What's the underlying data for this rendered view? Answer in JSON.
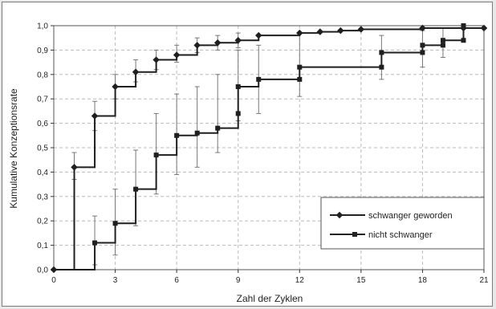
{
  "chart_data": {
    "type": "line",
    "step": true,
    "xlabel": "Zahl der Zyklen",
    "ylabel": "Kumulative Konzeptionsrate",
    "xlim": [
      0,
      21
    ],
    "ylim": [
      0,
      1.0
    ],
    "xticks": [
      0,
      3,
      6,
      9,
      12,
      15,
      18,
      21
    ],
    "yticks": [
      0,
      0.1,
      0.2,
      0.3,
      0.4,
      0.5,
      0.6,
      0.7,
      0.8,
      0.9,
      1.0
    ],
    "tick_labels_x": [
      "0",
      "3",
      "6",
      "9",
      "12",
      "15",
      "18",
      "21"
    ],
    "tick_labels_y": [
      "0,0",
      "0,1",
      "0,2",
      "0,3",
      "0,4",
      "0,5",
      "0,6",
      "0,7",
      "0,8",
      "0,9",
      "1,0"
    ],
    "grid": true,
    "legend_position": "bottom-right",
    "series": [
      {
        "name": "schwanger geworden",
        "marker": "diamond",
        "points": [
          [
            0,
            0
          ],
          [
            1,
            0.42
          ],
          [
            2,
            0.63
          ],
          [
            3,
            0.75
          ],
          [
            4,
            0.81
          ],
          [
            5,
            0.86
          ],
          [
            6,
            0.88
          ],
          [
            7,
            0.92
          ],
          [
            8,
            0.93
          ],
          [
            9,
            0.94
          ],
          [
            10,
            0.96
          ],
          [
            12,
            0.97
          ],
          [
            13,
            0.975
          ],
          [
            14,
            0.98
          ],
          [
            15,
            0.985
          ],
          [
            18,
            0.99
          ],
          [
            20,
            0.99
          ],
          [
            21,
            0.99
          ]
        ],
        "error_bars": [
          [
            1,
            0.37,
            0.48
          ],
          [
            2,
            0.57,
            0.69
          ],
          [
            3,
            0.7,
            0.8
          ],
          [
            4,
            0.77,
            0.86
          ],
          [
            5,
            0.82,
            0.9
          ],
          [
            6,
            0.85,
            0.92
          ],
          [
            7,
            0.89,
            0.95
          ],
          [
            8,
            0.9,
            0.96
          ],
          [
            9,
            0.91,
            0.97
          ]
        ]
      },
      {
        "name": "nicht schwanger",
        "marker": "square",
        "points": [
          [
            0,
            0
          ],
          [
            2,
            0.11
          ],
          [
            3,
            0.19
          ],
          [
            4,
            0.33
          ],
          [
            5,
            0.47
          ],
          [
            6,
            0.55
          ],
          [
            7,
            0.56
          ],
          [
            8,
            0.58
          ],
          [
            9,
            0.64
          ],
          [
            9,
            0.75
          ],
          [
            10,
            0.78
          ],
          [
            12,
            0.78
          ],
          [
            12,
            0.83
          ],
          [
            16,
            0.83
          ],
          [
            16,
            0.89
          ],
          [
            18,
            0.89
          ],
          [
            18,
            0.92
          ],
          [
            19,
            0.92
          ],
          [
            19,
            0.94
          ],
          [
            20,
            0.94
          ],
          [
            20,
            1.0
          ]
        ],
        "markers": [
          [
            2,
            0.11
          ],
          [
            3,
            0.19
          ],
          [
            4,
            0.33
          ],
          [
            5,
            0.47
          ],
          [
            6,
            0.55
          ],
          [
            7,
            0.56
          ],
          [
            8,
            0.58
          ],
          [
            9,
            0.64
          ],
          [
            9,
            0.75
          ],
          [
            10,
            0.78
          ],
          [
            12,
            0.78
          ],
          [
            12,
            0.83
          ],
          [
            16,
            0.83
          ],
          [
            16,
            0.89
          ],
          [
            18,
            0.89
          ],
          [
            18,
            0.92
          ],
          [
            19,
            0.92
          ],
          [
            19,
            0.94
          ],
          [
            20,
            0.94
          ],
          [
            20,
            1.0
          ]
        ],
        "error_bars": [
          [
            2,
            0.02,
            0.22
          ],
          [
            3,
            0.06,
            0.33
          ],
          [
            4,
            0.18,
            0.49
          ],
          [
            5,
            0.31,
            0.64
          ],
          [
            6,
            0.39,
            0.72
          ],
          [
            7,
            0.42,
            0.75
          ],
          [
            8,
            0.48,
            0.8
          ],
          [
            9,
            0.61,
            0.9
          ],
          [
            10,
            0.64,
            0.92
          ],
          [
            12,
            0.71,
            0.97
          ],
          [
            16,
            0.78,
            0.96
          ],
          [
            18,
            0.83,
            0.98
          ],
          [
            19,
            0.87,
            0.99
          ]
        ]
      }
    ]
  }
}
